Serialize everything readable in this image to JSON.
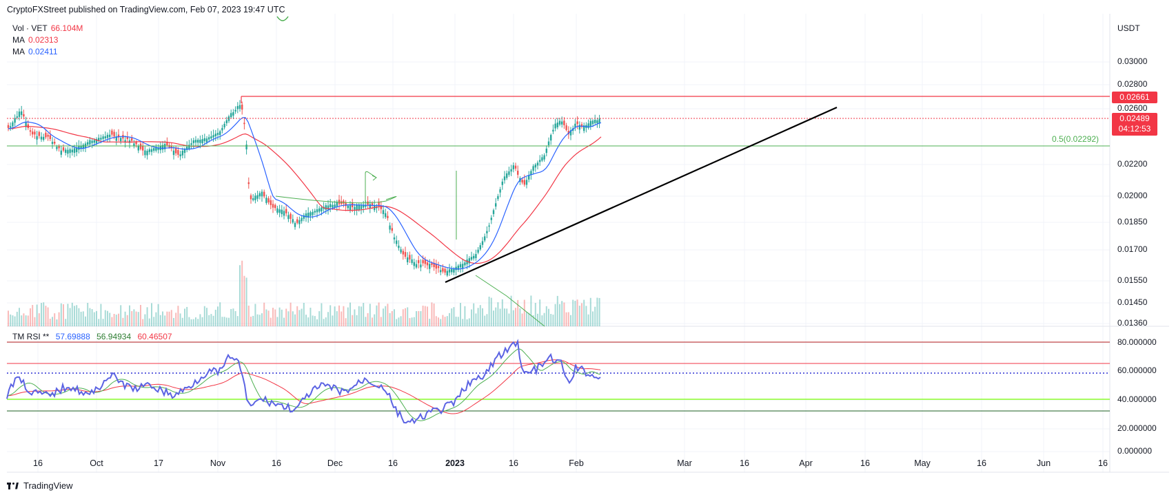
{
  "header": {
    "text": "CryptoFXStreet published on TradingView.com, Feb 07, 2023 19:47 UTC"
  },
  "legend": {
    "vol": {
      "label": "Vol · VET",
      "value": "66.104M"
    },
    "ma1": {
      "label": "MA",
      "value": "0.02313"
    },
    "ma2": {
      "label": "MA",
      "value": "0.02411"
    }
  },
  "rsi_legend": {
    "label": "TM RSI **",
    "v1": "57.69888",
    "v2": "56.94934",
    "v3": "60.46507"
  },
  "price_axis": {
    "currency": "USDT",
    "ticks": [
      "0.03000",
      "0.02800",
      "0.02600",
      "0.02200",
      "0.02000",
      "0.01850",
      "0.01700",
      "0.01550",
      "0.01450",
      "0.01360"
    ],
    "resistance_tag": "0.02661",
    "current_tag": "0.02489",
    "countdown": "04:12:53"
  },
  "fib_label": "0.5(0.02292)",
  "rsi_axis": {
    "ticks": [
      "80.000000",
      "60.000000",
      "40.000000",
      "20.000000",
      "0.000000"
    ]
  },
  "time_axis": {
    "labels": [
      {
        "text": "16",
        "bold": false
      },
      {
        "text": "Oct",
        "bold": false
      },
      {
        "text": "17",
        "bold": false
      },
      {
        "text": "Nov",
        "bold": false
      },
      {
        "text": "16",
        "bold": false
      },
      {
        "text": "Dec",
        "bold": false
      },
      {
        "text": "16",
        "bold": false
      },
      {
        "text": "2023",
        "bold": true
      },
      {
        "text": "16",
        "bold": false
      },
      {
        "text": "Feb",
        "bold": false
      },
      {
        "text": "Mar",
        "bold": false
      },
      {
        "text": "16",
        "bold": false
      },
      {
        "text": "Apr",
        "bold": false
      },
      {
        "text": "16",
        "bold": false
      },
      {
        "text": "May",
        "bold": false
      },
      {
        "text": "16",
        "bold": false
      },
      {
        "text": "Jun",
        "bold": false
      },
      {
        "text": "16",
        "bold": false
      }
    ]
  },
  "footer": {
    "brand": "TradingView"
  },
  "colors": {
    "up": "#26a69a",
    "down": "#ef5350",
    "resistance": "#f23645",
    "ma_fast": "#2962ff",
    "ma_slow": "#f23645",
    "fib": "#4caf50",
    "trendline": "#000000"
  }
}
